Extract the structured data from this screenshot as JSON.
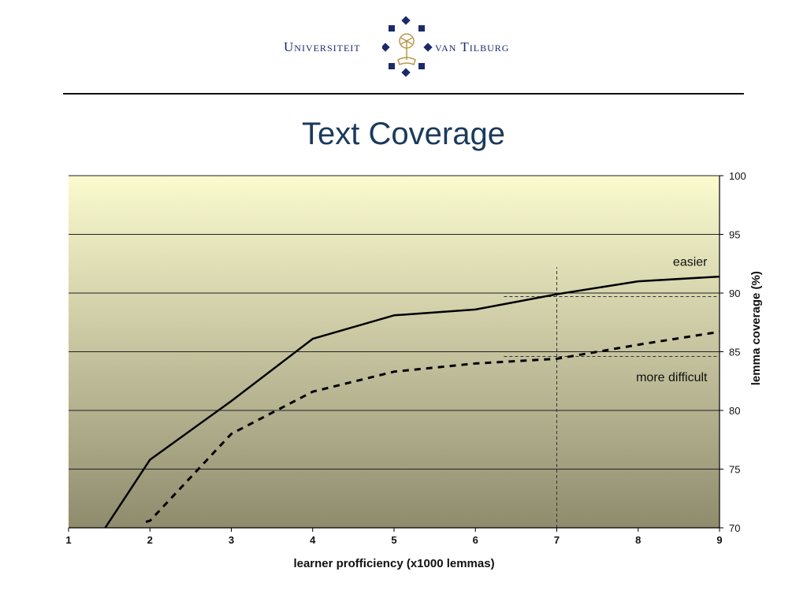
{
  "header": {
    "logo_left": "Universiteit",
    "logo_right": "van Tilburg",
    "title": "Text Coverage"
  },
  "colors": {
    "title": "#1b3a5c",
    "logo": "#1a2a6c",
    "plot_top": "#fbfbcf",
    "plot_bottom": "#8f8c6e"
  },
  "chart_data": {
    "type": "line",
    "title": "",
    "xlabel": "learner profficiency (x1000 lemmas)",
    "ylabel": "lemma coverage (%)",
    "xlim": [
      1,
      9
    ],
    "ylim": [
      70,
      100
    ],
    "x_ticks": [
      "1",
      "2",
      "3",
      "4",
      "5",
      "6",
      "7",
      "8",
      "9"
    ],
    "y_ticks": [
      "70",
      "75",
      "80",
      "85",
      "90",
      "95",
      "100"
    ],
    "y_axis_position": "right",
    "grid": "horizontal",
    "series": [
      {
        "style": "solid",
        "x": [
          1.45,
          2,
          3,
          4,
          5,
          6,
          7,
          8,
          9
        ],
        "y": [
          70,
          75.8,
          80.8,
          86.1,
          88.1,
          88.6,
          89.9,
          91.0,
          91.4
        ]
      },
      {
        "style": "dashed",
        "x": [
          1.95,
          2,
          3,
          4,
          5,
          6,
          7,
          8,
          9
        ],
        "y": [
          70.5,
          70.6,
          78.0,
          81.6,
          83.3,
          84.0,
          84.4,
          85.6,
          86.7
        ]
      }
    ],
    "reference_lines": [
      {
        "type": "vertical",
        "x": 7,
        "y_from": 70,
        "y_to": 92.2
      },
      {
        "type": "horizontal",
        "y": 89.7,
        "x_from": 6.35,
        "x_to": 9
      },
      {
        "type": "horizontal",
        "y": 84.6,
        "x_from": 6.35,
        "x_to": 9
      }
    ],
    "annotations": [
      {
        "text": "easier",
        "x": 8.85,
        "y": 92.3
      },
      {
        "text": "more difficult",
        "x": 8.85,
        "y": 82.5
      }
    ]
  }
}
